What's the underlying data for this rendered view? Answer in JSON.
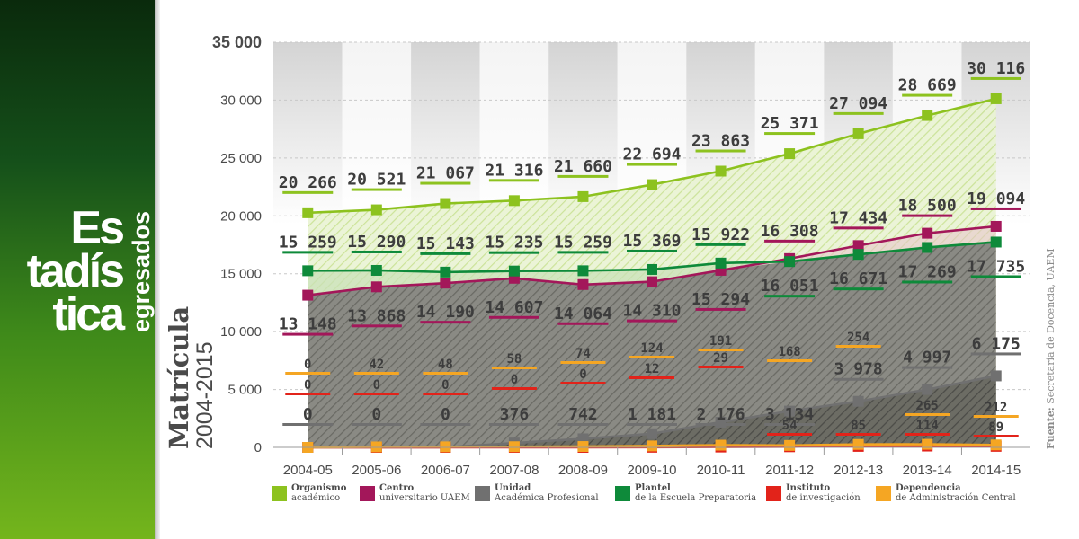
{
  "header": {
    "title_lines": [
      "Es",
      "tadís",
      "tica"
    ],
    "subtitle": "egresados"
  },
  "source": {
    "label": "Fuente:",
    "text": "Secretaría de Docencia, UAEM"
  },
  "colors": {
    "organismo": "#8dc21f",
    "centro": "#a3175a",
    "unidad": "#707070",
    "plantel": "#0e8a3a",
    "instituto": "#e2231a",
    "dependencia": "#f5a623"
  },
  "legend": [
    {
      "key": "organismo",
      "line1": "Organismo",
      "line2": "académico"
    },
    {
      "key": "centro",
      "line1": "Centro",
      "line2": "universitario UAEM"
    },
    {
      "key": "unidad",
      "line1": "Unidad",
      "line2": "Académica Profesional"
    },
    {
      "key": "plantel",
      "line1": "Plantel",
      "line2": "de la Escuela Preparatoria"
    },
    {
      "key": "instituto",
      "line1": "Instituto",
      "line2": "de investigación"
    },
    {
      "key": "dependencia",
      "line1": "Dependencia",
      "line2": "de Administración Central"
    }
  ],
  "chart_data": {
    "type": "line",
    "ylabel": "Matrícula",
    "ylabel_sub": "2004-2015",
    "ylim": [
      0,
      35000
    ],
    "yticks": [
      0,
      5000,
      10000,
      15000,
      20000,
      25000,
      30000,
      35000
    ],
    "ytick_labels": [
      "0",
      "5 000",
      "10 000",
      "15 000",
      "20 000",
      "25 000",
      "30 000",
      "35 000"
    ],
    "grid": true,
    "categories": [
      "2004-05",
      "2005-06",
      "2006-07",
      "2007-08",
      "2008-09",
      "2009-10",
      "2010-11",
      "2011-12",
      "2012-13",
      "2013-14",
      "2014-15"
    ],
    "series": [
      {
        "key": "organismo",
        "name": "Organismo académico",
        "values": [
          20266,
          20521,
          21067,
          21316,
          21660,
          22694,
          23863,
          25371,
          27094,
          28669,
          30116
        ],
        "labels": [
          "20 266",
          "20 521",
          "21 067",
          "21 316",
          "21 660",
          "22 694",
          "23 863",
          "25 371",
          "27 094",
          "28 669",
          "30 116"
        ]
      },
      {
        "key": "centro",
        "name": "Centro universitario UAEM",
        "values": [
          13148,
          13868,
          14190,
          14607,
          14064,
          14310,
          15294,
          16308,
          17434,
          18500,
          19094
        ],
        "labels": [
          "13 148",
          "13 868",
          "14 190",
          "14 607",
          "14 064",
          "14 310",
          "15 294",
          "16 308",
          "17 434",
          "18 500",
          "19 094"
        ]
      },
      {
        "key": "plantel",
        "name": "Plantel de la Escuela Preparatoria",
        "values": [
          15259,
          15290,
          15143,
          15235,
          15259,
          15369,
          15922,
          16051,
          16671,
          17269,
          17735
        ],
        "labels": [
          "15 259",
          "15 290",
          "15 143",
          "15 235",
          "15 259",
          "15 369",
          "15 922",
          "16 051",
          "16 671",
          "17 269",
          "17 735"
        ]
      },
      {
        "key": "unidad",
        "name": "Unidad Académica Profesional",
        "values": [
          0,
          0,
          0,
          376,
          742,
          1181,
          2176,
          3134,
          3978,
          4997,
          6175
        ],
        "labels": [
          "0",
          "0",
          "0",
          "376",
          "742",
          "1 181",
          "2 176",
          "3 134",
          "3 978",
          "4 997",
          "6 175"
        ]
      },
      {
        "key": "dependencia",
        "name": "Dependencia de Administración Central",
        "values": [
          0,
          42,
          48,
          58,
          74,
          124,
          191,
          168,
          254,
          265,
          212
        ],
        "labels": [
          "0",
          "42",
          "48",
          "58",
          "74",
          "124",
          "191",
          "168",
          "254",
          "265",
          "212"
        ]
      },
      {
        "key": "instituto",
        "name": "Instituto de investigación",
        "values": [
          0,
          0,
          0,
          0,
          0,
          12,
          29,
          54,
          85,
          114,
          89
        ],
        "labels": [
          "0",
          "0",
          "0",
          "0",
          "0",
          "12",
          "29",
          "54",
          "85",
          "114",
          "89"
        ]
      }
    ]
  }
}
